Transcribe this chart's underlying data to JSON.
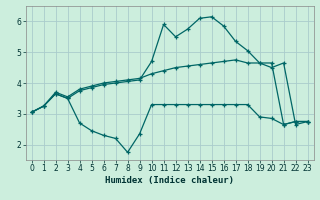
{
  "background_color": "#cceedd",
  "grid_color": "#aacccc",
  "line_color": "#006666",
  "xlabel": "Humidex (Indice chaleur)",
  "xlim": [
    -0.5,
    23.5
  ],
  "ylim": [
    1.5,
    6.5
  ],
  "xticks": [
    0,
    1,
    2,
    3,
    4,
    5,
    6,
    7,
    8,
    9,
    10,
    11,
    12,
    13,
    14,
    15,
    16,
    17,
    18,
    19,
    20,
    21,
    22,
    23
  ],
  "yticks": [
    2,
    3,
    4,
    5,
    6
  ],
  "line1_x": [
    0,
    1,
    2,
    3,
    4,
    5,
    6,
    7,
    8,
    9,
    10,
    11,
    12,
    13,
    14,
    15,
    16,
    17,
    18,
    19,
    20,
    21,
    22,
    23
  ],
  "line1_y": [
    3.05,
    3.25,
    3.65,
    3.5,
    2.7,
    2.45,
    2.3,
    2.2,
    1.75,
    2.35,
    3.3,
    3.3,
    3.3,
    3.3,
    3.3,
    3.3,
    3.3,
    3.3,
    3.3,
    2.9,
    2.85,
    2.65,
    2.75,
    2.75
  ],
  "line2_x": [
    0,
    1,
    2,
    3,
    4,
    5,
    6,
    7,
    8,
    9,
    10,
    11,
    12,
    13,
    14,
    15,
    16,
    17,
    18,
    19,
    20,
    21,
    22,
    23
  ],
  "line2_y": [
    3.05,
    3.25,
    3.7,
    3.55,
    3.8,
    3.9,
    4.0,
    4.05,
    4.1,
    4.15,
    4.3,
    4.4,
    4.5,
    4.55,
    4.6,
    4.65,
    4.7,
    4.75,
    4.65,
    4.65,
    4.65,
    2.65,
    2.75,
    2.75
  ],
  "line3_x": [
    0,
    1,
    2,
    3,
    4,
    5,
    6,
    7,
    8,
    9,
    10,
    11,
    12,
    13,
    14,
    15,
    16,
    17,
    18,
    19,
    20,
    21,
    22,
    23
  ],
  "line3_y": [
    3.05,
    3.25,
    3.65,
    3.5,
    3.75,
    3.85,
    3.95,
    4.0,
    4.05,
    4.1,
    4.7,
    5.9,
    5.5,
    5.75,
    6.1,
    6.15,
    5.85,
    5.35,
    5.05,
    4.65,
    4.5,
    4.65,
    2.65,
    2.75
  ]
}
